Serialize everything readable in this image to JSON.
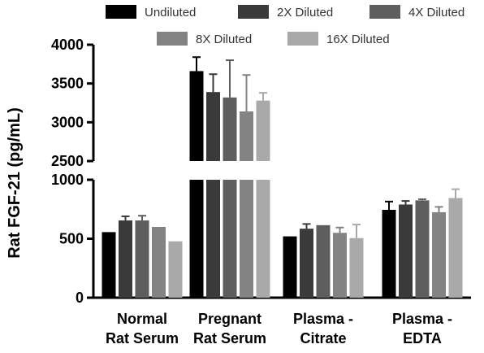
{
  "chart_data": {
    "type": "bar",
    "title": "",
    "xlabel": "",
    "ylabel": "Rat FGF-21 (pg/mL)",
    "y_axis_broken": true,
    "lower_segment": {
      "ylim": [
        0,
        1000
      ],
      "ticks": [
        "0",
        "500",
        "1000"
      ]
    },
    "upper_segment": {
      "ylim": [
        2500,
        4000
      ],
      "ticks": [
        "2500",
        "3000",
        "3500",
        "4000"
      ]
    },
    "legend_position": "top",
    "grid": false,
    "categories": [
      [
        "Normal",
        "Rat Serum"
      ],
      [
        "Pregnant",
        "Rat Serum"
      ],
      [
        "Plasma -",
        "Citrate"
      ],
      [
        "Plasma -",
        "EDTA"
      ]
    ],
    "series": [
      {
        "name": "Undiluted",
        "color": "#000000",
        "values": [
          556,
          3660,
          520,
          745
        ],
        "errors": [
          0,
          180,
          0,
          70
        ]
      },
      {
        "name": "2X Diluted",
        "color": "#3a3a3a",
        "values": [
          655,
          3390,
          585,
          790
        ],
        "errors": [
          35,
          230,
          40,
          30
        ]
      },
      {
        "name": "4X Diluted",
        "color": "#5e5e5e",
        "values": [
          655,
          3320,
          615,
          825
        ],
        "errors": [
          40,
          480,
          0,
          10
        ]
      },
      {
        "name": "8X Diluted",
        "color": "#838383",
        "values": [
          600,
          3140,
          550,
          725
        ],
        "errors": [
          0,
          470,
          45,
          45
        ]
      },
      {
        "name": "16X Diluted",
        "color": "#a9a9a9",
        "values": [
          478,
          3280,
          505,
          845
        ],
        "errors": [
          0,
          100,
          115,
          75
        ]
      }
    ]
  }
}
